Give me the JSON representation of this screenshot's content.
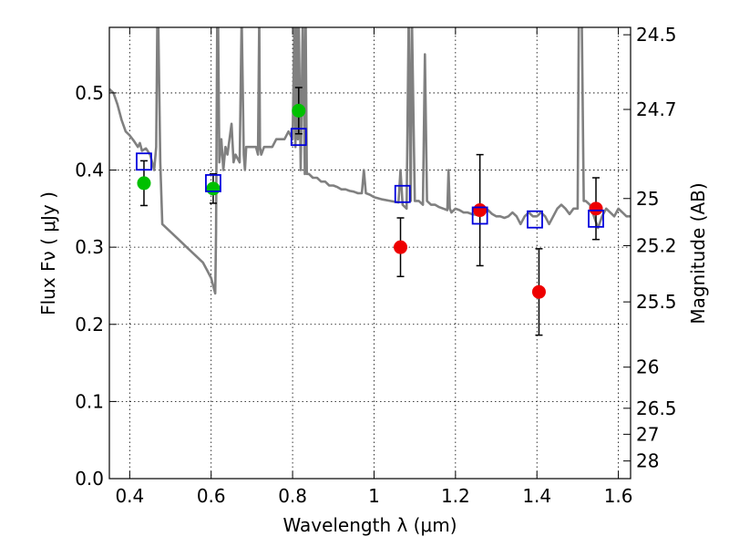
{
  "chart_data": {
    "type": "scatter",
    "xlabel": "Wavelength  λ (μm)",
    "ylabel": "Flux  Fν  ( μJy )",
    "y2label": "Magnitude (AB)",
    "xlim": [
      0.35,
      1.63
    ],
    "ylim": [
      0.0,
      0.585
    ],
    "grid": true,
    "x_ticks": [
      0.4,
      0.6,
      0.8,
      1.0,
      1.2,
      1.4,
      1.6
    ],
    "x_tick_labels": [
      "0.4",
      "0.6",
      "0.8",
      "1",
      "1.2",
      "1.4",
      "1.6"
    ],
    "y_ticks": [
      0.0,
      0.1,
      0.2,
      0.3,
      0.4,
      0.5
    ],
    "y_tick_labels": [
      "0.0",
      "0.1",
      "0.2",
      "0.3",
      "0.4",
      "0.5"
    ],
    "y2_ticks": [
      {
        "label": "24.5",
        "flux": 0.5754
      },
      {
        "label": "24.7",
        "flux": 0.4786
      },
      {
        "label": "25",
        "flux": 0.3631
      },
      {
        "label": "25.2",
        "flux": 0.302
      },
      {
        "label": "25.5",
        "flux": 0.2291
      },
      {
        "label": "26",
        "flux": 0.1445
      },
      {
        "label": "26.5",
        "flux": 0.0912
      },
      {
        "label": "27",
        "flux": 0.0575
      },
      {
        "label": "28",
        "flux": 0.0229
      }
    ],
    "colors": {
      "spectrum": "#808080",
      "green": "#00c000",
      "red": "#ee0000",
      "model_box": "#0000dd",
      "errorbar": "#000000"
    },
    "series": [
      {
        "type": "line",
        "x": [
          0.35,
          0.36,
          0.37,
          0.38,
          0.39,
          0.4,
          0.41,
          0.42,
          0.425,
          0.43,
          0.44,
          0.45,
          0.46,
          0.465,
          0.468,
          0.47,
          0.475,
          0.48,
          0.5,
          0.52,
          0.54,
          0.56,
          0.58,
          0.59,
          0.6,
          0.605,
          0.61,
          0.612,
          0.615,
          0.617,
          0.62,
          0.625,
          0.63,
          0.635,
          0.64,
          0.65,
          0.655,
          0.66,
          0.67,
          0.675,
          0.68,
          0.683,
          0.686,
          0.69,
          0.7,
          0.71,
          0.715,
          0.718,
          0.72,
          0.723,
          0.73,
          0.74,
          0.75,
          0.76,
          0.77,
          0.78,
          0.79,
          0.8,
          0.805,
          0.807,
          0.81,
          0.813,
          0.815,
          0.82,
          0.825,
          0.83,
          0.832,
          0.835,
          0.84,
          0.85,
          0.86,
          0.87,
          0.88,
          0.89,
          0.9,
          0.91,
          0.92,
          0.93,
          0.94,
          0.95,
          0.96,
          0.97,
          0.975,
          0.98,
          0.99,
          1.0,
          1.02,
          1.04,
          1.06,
          1.065,
          1.07,
          1.08,
          1.085,
          1.09,
          1.093,
          1.1,
          1.11,
          1.12,
          1.125,
          1.13,
          1.14,
          1.15,
          1.16,
          1.17,
          1.18,
          1.183,
          1.186,
          1.19,
          1.2,
          1.21,
          1.22,
          1.23,
          1.24,
          1.25,
          1.26,
          1.27,
          1.28,
          1.29,
          1.3,
          1.31,
          1.32,
          1.33,
          1.34,
          1.35,
          1.36,
          1.37,
          1.38,
          1.39,
          1.4,
          1.41,
          1.42,
          1.43,
          1.44,
          1.45,
          1.46,
          1.47,
          1.48,
          1.49,
          1.5,
          1.503,
          1.507,
          1.51,
          1.515,
          1.52,
          1.53,
          1.54,
          1.55,
          1.56,
          1.57,
          1.58,
          1.59,
          1.6,
          1.61,
          1.62,
          1.63
        ],
        "y": [
          0.505,
          0.5,
          0.485,
          0.465,
          0.45,
          0.445,
          0.438,
          0.43,
          0.435,
          0.425,
          0.428,
          0.42,
          0.4,
          0.43,
          0.6,
          0.6,
          0.41,
          0.33,
          0.32,
          0.31,
          0.3,
          0.29,
          0.28,
          0.27,
          0.26,
          0.25,
          0.24,
          0.32,
          0.6,
          0.6,
          0.41,
          0.44,
          0.4,
          0.43,
          0.42,
          0.46,
          0.41,
          0.42,
          0.41,
          0.6,
          0.42,
          0.4,
          0.43,
          0.43,
          0.43,
          0.43,
          0.42,
          0.6,
          0.43,
          0.42,
          0.43,
          0.43,
          0.43,
          0.44,
          0.44,
          0.44,
          0.45,
          0.44,
          0.6,
          0.43,
          0.6,
          0.44,
          0.6,
          0.4,
          0.6,
          0.395,
          0.6,
          0.395,
          0.395,
          0.39,
          0.39,
          0.385,
          0.385,
          0.38,
          0.38,
          0.378,
          0.375,
          0.375,
          0.373,
          0.372,
          0.37,
          0.37,
          0.4,
          0.37,
          0.368,
          0.365,
          0.362,
          0.36,
          0.358,
          0.4,
          0.355,
          0.35,
          0.6,
          0.36,
          0.6,
          0.36,
          0.36,
          0.355,
          0.55,
          0.36,
          0.355,
          0.355,
          0.352,
          0.35,
          0.348,
          0.4,
          0.35,
          0.345,
          0.35,
          0.348,
          0.345,
          0.345,
          0.343,
          0.342,
          0.343,
          0.345,
          0.348,
          0.343,
          0.34,
          0.34,
          0.338,
          0.34,
          0.345,
          0.34,
          0.33,
          0.34,
          0.345,
          0.34,
          0.34,
          0.345,
          0.34,
          0.33,
          0.34,
          0.35,
          0.355,
          0.35,
          0.343,
          0.35,
          0.35,
          0.6,
          0.6,
          0.6,
          0.36,
          0.36,
          0.355,
          0.34,
          0.325,
          0.34,
          0.35,
          0.345,
          0.34,
          0.35,
          0.345,
          0.34,
          0.34
        ]
      },
      {
        "type": "scatter",
        "marker": "green-circle",
        "x": [
          0.435,
          0.605,
          0.815
        ],
        "y": [
          0.383,
          0.376,
          0.477
        ],
        "err": [
          0.029,
          0.019,
          0.03
        ]
      },
      {
        "type": "scatter",
        "marker": "red-circle",
        "x": [
          1.065,
          1.26,
          1.405,
          1.545
        ],
        "y": [
          0.3,
          0.348,
          0.242,
          0.35
        ],
        "err": [
          0.038,
          0.072,
          0.056,
          0.04
        ]
      },
      {
        "type": "scatter",
        "marker": "blue-open-square",
        "x": [
          0.435,
          0.605,
          0.815,
          1.07,
          1.26,
          1.395,
          1.545
        ],
        "y": [
          0.411,
          0.383,
          0.443,
          0.369,
          0.341,
          0.336,
          0.337
        ]
      }
    ]
  }
}
